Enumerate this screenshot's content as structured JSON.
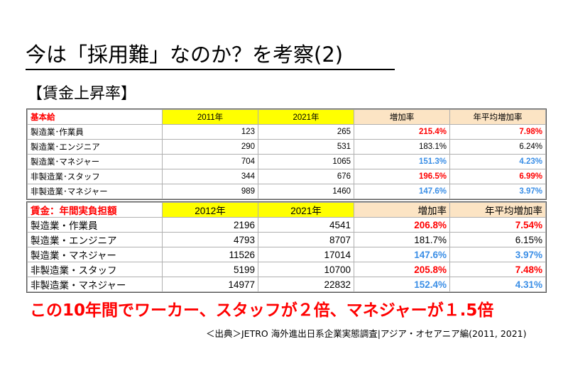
{
  "title": "今は「採用難」なのか？を考察(2)",
  "subtitle": "【賃金上昇率】",
  "table1": {
    "header": [
      "基本給",
      "2011年",
      "2021年",
      "増加率",
      "年平均増加率"
    ],
    "rows": [
      {
        "label": "製造業･作業員",
        "a": "123",
        "b": "265",
        "rate": "215.4%",
        "rate_style": "red",
        "avg": "7.98%",
        "avg_style": "red"
      },
      {
        "label": "製造業･エンジニア",
        "a": "290",
        "b": "531",
        "rate": "183.1%",
        "rate_style": "plain",
        "avg": "6.24%",
        "avg_style": "plain"
      },
      {
        "label": "製造業･マネジャー",
        "a": "704",
        "b": "1065",
        "rate": "151.3%",
        "rate_style": "blue",
        "avg": "4.23%",
        "avg_style": "blue"
      },
      {
        "label": "非製造業･スタッフ",
        "a": "344",
        "b": "676",
        "rate": "196.5%",
        "rate_style": "red",
        "avg": "6.99%",
        "avg_style": "red"
      },
      {
        "label": "非製造業･マネジャー",
        "a": "989",
        "b": "1460",
        "rate": "147.6%",
        "rate_style": "blue",
        "avg": "3.97%",
        "avg_style": "blue"
      }
    ]
  },
  "table2": {
    "header": [
      "賃金：年間実負担額",
      "2012年",
      "2021年",
      "増加率",
      "年平均増加率"
    ],
    "rows": [
      {
        "label": "製造業・作業員",
        "a": "2196",
        "b": "4541",
        "rate": "206.8%",
        "rate_style": "red",
        "avg": "7.54%",
        "avg_style": "red"
      },
      {
        "label": "製造業・エンジニア",
        "a": "4793",
        "b": "8707",
        "rate": "181.7%",
        "rate_style": "plain",
        "avg": "6.15%",
        "avg_style": "plain"
      },
      {
        "label": "製造業・マネジャー",
        "a": "11526",
        "b": "17014",
        "rate": "147.6%",
        "rate_style": "blue",
        "avg": "3.97%",
        "avg_style": "blue"
      },
      {
        "label": "非製造業・スタッフ",
        "a": "5199",
        "b": "10700",
        "rate": "205.8%",
        "rate_style": "red",
        "avg": "7.48%",
        "avg_style": "red"
      },
      {
        "label": "非製造業・マネジャー",
        "a": "14977",
        "b": "22832",
        "rate": "152.4%",
        "rate_style": "blue",
        "avg": "4.31%",
        "avg_style": "blue"
      }
    ]
  },
  "conclusion": "この10年間でワーカー、スタッフが２倍、マネジャーが１.5倍",
  "source": "＜出典＞JETRO 海外進出日系企業実態調査|アジア・オセアニア編(2011, 2021)",
  "colors": {
    "accent_red": "#ff0000",
    "accent_blue": "#3a8ee6",
    "header_yellow": "#ffff00",
    "header_beige": "#fce4c4"
  }
}
